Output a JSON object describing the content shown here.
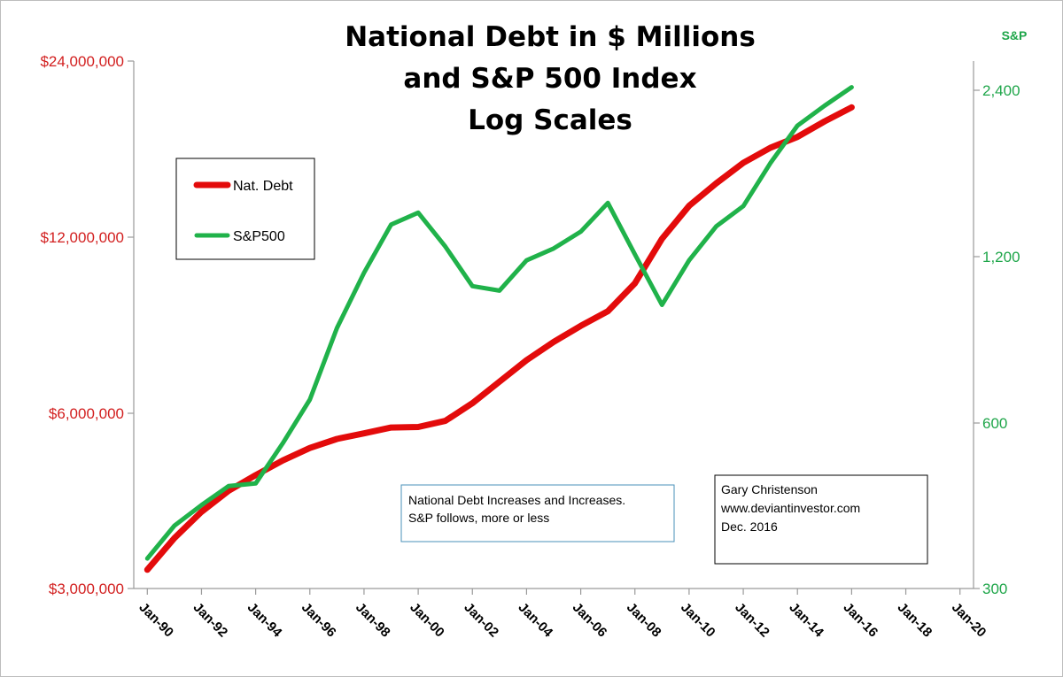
{
  "chart_data": {
    "type": "line",
    "title_lines": [
      "National Debt  in $ Millions",
      "and S&P 500 Index",
      "Log Scales"
    ],
    "right_axis_label": "S&P",
    "left_axis": {
      "scale": "log2",
      "range": [
        3000000,
        24000000
      ],
      "tick_values": [
        3000000,
        6000000,
        12000000,
        24000000
      ],
      "tick_labels": [
        "$3,000,000",
        "$6,000,000",
        "$12,000,000",
        "$24,000,000"
      ],
      "color": "#d21f1f"
    },
    "right_axis": {
      "scale": "log2",
      "range": [
        300,
        2400
      ],
      "tick_values": [
        300,
        600,
        1200,
        2400
      ],
      "tick_labels": [
        "300",
        "600",
        "1,200",
        "2,400"
      ],
      "color": "#1fa64a"
    },
    "x_range": [
      "1990-01",
      "2020-01"
    ],
    "x_tick_labels": [
      "Jan-90",
      "Jan-92",
      "Jan-94",
      "Jan-96",
      "Jan-98",
      "Jan-00",
      "Jan-02",
      "Jan-04",
      "Jan-06",
      "Jan-08",
      "Jan-10",
      "Jan-12",
      "Jan-14",
      "Jan-16",
      "Jan-18",
      "Jan-20"
    ],
    "x_tick_values": [
      "1990-01",
      "1992-01",
      "1994-01",
      "1996-01",
      "1998-01",
      "2000-01",
      "2002-01",
      "2004-01",
      "2006-01",
      "2008-01",
      "2010-01",
      "2012-01",
      "2014-01",
      "2016-01",
      "2018-01",
      "2020-01"
    ],
    "gridlines": false,
    "legend_position": "top-left",
    "series": [
      {
        "name": "Nat. Debt",
        "axis": "left",
        "color": "#e30b0b",
        "points": [
          {
            "x": "1990-01",
            "y": 3230000
          },
          {
            "x": "1991-01",
            "y": 3660000
          },
          {
            "x": "1992-01",
            "y": 4060000
          },
          {
            "x": "1993-01",
            "y": 4410000
          },
          {
            "x": "1994-01",
            "y": 4690000
          },
          {
            "x": "1995-01",
            "y": 4970000
          },
          {
            "x": "1996-01",
            "y": 5220000
          },
          {
            "x": "1997-01",
            "y": 5410000
          },
          {
            "x": "1998-01",
            "y": 5530000
          },
          {
            "x": "1999-01",
            "y": 5660000
          },
          {
            "x": "2000-01",
            "y": 5670000
          },
          {
            "x": "2001-01",
            "y": 5810000
          },
          {
            "x": "2002-01",
            "y": 6230000
          },
          {
            "x": "2003-01",
            "y": 6780000
          },
          {
            "x": "2004-01",
            "y": 7380000
          },
          {
            "x": "2005-01",
            "y": 7930000
          },
          {
            "x": "2006-01",
            "y": 8450000
          },
          {
            "x": "2007-01",
            "y": 8950000
          },
          {
            "x": "2008-01",
            "y": 9990000
          },
          {
            "x": "2009-01",
            "y": 11910000
          },
          {
            "x": "2010-01",
            "y": 13560000
          },
          {
            "x": "2011-01",
            "y": 14820000
          },
          {
            "x": "2012-01",
            "y": 16070000
          },
          {
            "x": "2013-01",
            "y": 17050000
          },
          {
            "x": "2014-01",
            "y": 17800000
          },
          {
            "x": "2015-01",
            "y": 18920000
          },
          {
            "x": "2016-01",
            "y": 20000000
          }
        ]
      },
      {
        "name": "S&P500",
        "axis": "right",
        "color": "#20b24a",
        "points": [
          {
            "x": "1990-01",
            "y": 340
          },
          {
            "x": "1991-01",
            "y": 390
          },
          {
            "x": "1992-01",
            "y": 425
          },
          {
            "x": "1993-01",
            "y": 460
          },
          {
            "x": "1994-01",
            "y": 465
          },
          {
            "x": "1995-01",
            "y": 550
          },
          {
            "x": "1996-01",
            "y": 660
          },
          {
            "x": "1997-01",
            "y": 890
          },
          {
            "x": "1998-01",
            "y": 1120
          },
          {
            "x": "1999-01",
            "y": 1370
          },
          {
            "x": "2000-01",
            "y": 1440
          },
          {
            "x": "2001-01",
            "y": 1250
          },
          {
            "x": "2002-01",
            "y": 1060
          },
          {
            "x": "2003-01",
            "y": 1040
          },
          {
            "x": "2004-01",
            "y": 1180
          },
          {
            "x": "2005-01",
            "y": 1240
          },
          {
            "x": "2006-01",
            "y": 1330
          },
          {
            "x": "2007-01",
            "y": 1500
          },
          {
            "x": "2008-01",
            "y": 1210
          },
          {
            "x": "2009-01",
            "y": 980
          },
          {
            "x": "2010-01",
            "y": 1180
          },
          {
            "x": "2011-01",
            "y": 1360
          },
          {
            "x": "2012-01",
            "y": 1480
          },
          {
            "x": "2013-01",
            "y": 1770
          },
          {
            "x": "2014-01",
            "y": 2070
          },
          {
            "x": "2015-01",
            "y": 2250
          },
          {
            "x": "2016-01",
            "y": 2430
          }
        ]
      }
    ],
    "annotations": [
      {
        "lines": [
          "National Debt Increases and Increases.",
          "S&P follows, more or less"
        ],
        "border_color": "#4a90b8"
      },
      {
        "lines": [
          "Gary Christenson",
          "www.deviantinvestor.com",
          "Dec. 2016"
        ],
        "border_color": "#000000"
      }
    ]
  }
}
